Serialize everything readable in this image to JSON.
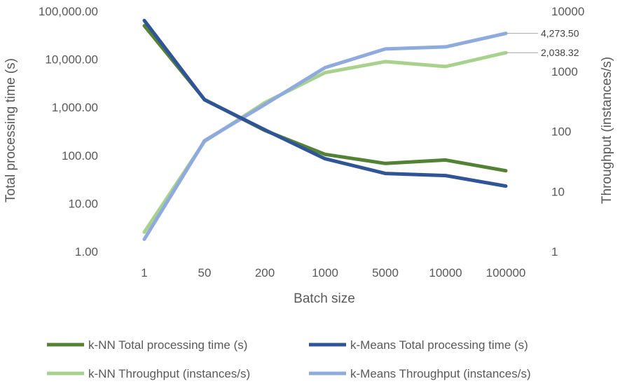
{
  "chart_data": {
    "type": "line",
    "categories": [
      "1",
      "50",
      "200",
      "1000",
      "5000",
      "10000",
      "100000"
    ],
    "xlabel": "Batch size",
    "y_left": {
      "label": "Total processing time (s)",
      "scale": "log",
      "range": [
        1,
        100000
      ],
      "ticks": [
        "1.00",
        "10.00",
        "100.00",
        "1,000.00",
        "10,000.00",
        "100,000.00"
      ]
    },
    "y_right": {
      "label": "Throughput (instances/s)",
      "scale": "log",
      "range": [
        1,
        10000
      ],
      "ticks": [
        "1",
        "10",
        "100",
        "1000",
        "10000"
      ]
    },
    "series": [
      {
        "name": "k-NN Total processing time (s)",
        "axis": "left",
        "color": "#548235",
        "values": [
          50000,
          1450,
          330,
          105,
          68,
          80,
          48
        ]
      },
      {
        "name": "k-Means Total processing time (s)",
        "axis": "left",
        "color": "#2F5597",
        "values": [
          64000,
          1430,
          340,
          85,
          42,
          38,
          23
        ]
      },
      {
        "name": "k-NN Throughput (instances/s)",
        "axis": "right",
        "color": "#A9D18E",
        "values": [
          2.1,
          68,
          300,
          950,
          1450,
          1200,
          2038.32
        ]
      },
      {
        "name": "k-Means Throughput (instances/s)",
        "axis": "right",
        "color": "#8FAADC",
        "values": [
          1.6,
          70,
          280,
          1150,
          2350,
          2550,
          4273.5
        ]
      }
    ],
    "annotations": [
      {
        "series": "k-Means Throughput (instances/s)",
        "category": "100000",
        "text": "4,273.50"
      },
      {
        "series": "k-NN Throughput (instances/s)",
        "category": "100000",
        "text": "2,038.32"
      }
    ],
    "grid": false,
    "legend": "bottom"
  }
}
